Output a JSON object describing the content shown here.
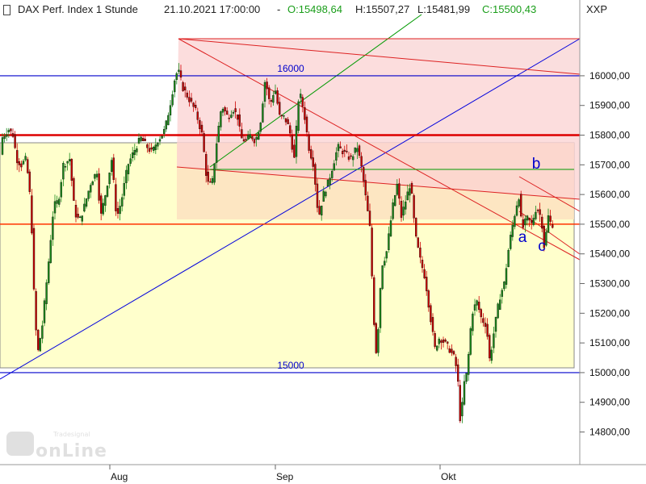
{
  "header": {
    "instrument": "DAX Perf. Index 1 Stunde",
    "datetime": "21.10.2021 17:00:00",
    "separator": "-",
    "open": "O:15498,64",
    "high": "H:15507,27",
    "low": "L:15481,99",
    "close": "C:15500,43",
    "open_color": "#1a9e1a",
    "close_color": "#1a9e1a",
    "currency": "XXP"
  },
  "chart_data": {
    "type": "candlestick",
    "title": "DAX Perf. Index 1 Stunde",
    "y_axis": {
      "side": "right",
      "range": [
        14690,
        16190
      ],
      "ticks": [
        14800,
        14900,
        15000,
        15100,
        15200,
        15300,
        15400,
        15500,
        15600,
        15700,
        15800,
        15900,
        16000
      ],
      "tick_labels": [
        "14800,00",
        "14900,00",
        "15000,00",
        "15100,00",
        "15200,00",
        "15300,00",
        "15400,00",
        "15500,00",
        "15600,00",
        "15700,00",
        "15800,00",
        "15900,00",
        "16000,00"
      ]
    },
    "x_axis": {
      "labels": [
        "Aug",
        "Sep",
        "Okt"
      ]
    },
    "path": [
      [
        0,
        15680
      ],
      [
        4,
        15790
      ],
      [
        12,
        15820
      ],
      [
        18,
        15800
      ],
      [
        22,
        15720
      ],
      [
        28,
        15700
      ],
      [
        34,
        15720
      ],
      [
        40,
        15560
      ],
      [
        44,
        15240
      ],
      [
        48,
        15060
      ],
      [
        54,
        15160
      ],
      [
        62,
        15380
      ],
      [
        68,
        15560
      ],
      [
        74,
        15580
      ],
      [
        80,
        15700
      ],
      [
        88,
        15720
      ],
      [
        94,
        15540
      ],
      [
        100,
        15510
      ],
      [
        106,
        15560
      ],
      [
        114,
        15640
      ],
      [
        122,
        15680
      ],
      [
        126,
        15520
      ],
      [
        132,
        15600
      ],
      [
        140,
        15720
      ],
      [
        146,
        15520
      ],
      [
        152,
        15580
      ],
      [
        160,
        15700
      ],
      [
        170,
        15760
      ],
      [
        176,
        15790
      ],
      [
        184,
        15760
      ],
      [
        190,
        15740
      ],
      [
        196,
        15780
      ],
      [
        202,
        15800
      ],
      [
        206,
        15820
      ],
      [
        212,
        15900
      ],
      [
        218,
        15990
      ],
      [
        222,
        16020
      ],
      [
        228,
        15960
      ],
      [
        236,
        15920
      ],
      [
        244,
        15880
      ],
      [
        252,
        15800
      ],
      [
        258,
        15640
      ],
      [
        264,
        15630
      ],
      [
        270,
        15780
      ],
      [
        276,
        15900
      ],
      [
        284,
        15860
      ],
      [
        290,
        15890
      ],
      [
        296,
        15860
      ],
      [
        300,
        15790
      ],
      [
        306,
        15780
      ],
      [
        312,
        15800
      ],
      [
        318,
        15780
      ],
      [
        324,
        15840
      ],
      [
        330,
        15990
      ],
      [
        336,
        15900
      ],
      [
        342,
        15960
      ],
      [
        348,
        15860
      ],
      [
        354,
        15860
      ],
      [
        360,
        15820
      ],
      [
        366,
        15720
      ],
      [
        372,
        15950
      ],
      [
        378,
        15880
      ],
      [
        384,
        15760
      ],
      [
        390,
        15700
      ],
      [
        396,
        15520
      ],
      [
        402,
        15600
      ],
      [
        408,
        15640
      ],
      [
        414,
        15700
      ],
      [
        420,
        15760
      ],
      [
        428,
        15740
      ],
      [
        436,
        15720
      ],
      [
        444,
        15760
      ],
      [
        450,
        15680
      ],
      [
        456,
        15560
      ],
      [
        460,
        15480
      ],
      [
        464,
        15200
      ],
      [
        468,
        15050
      ],
      [
        474,
        15360
      ],
      [
        480,
        15400
      ],
      [
        488,
        15560
      ],
      [
        494,
        15640
      ],
      [
        498,
        15520
      ],
      [
        504,
        15580
      ],
      [
        510,
        15640
      ],
      [
        516,
        15460
      ],
      [
        522,
        15380
      ],
      [
        528,
        15320
      ],
      [
        534,
        15200
      ],
      [
        540,
        15080
      ],
      [
        546,
        15120
      ],
      [
        552,
        15100
      ],
      [
        558,
        15080
      ],
      [
        564,
        15050
      ],
      [
        568,
        15000
      ],
      [
        572,
        14820
      ],
      [
        576,
        14960
      ],
      [
        580,
        15000
      ],
      [
        586,
        15200
      ],
      [
        592,
        15240
      ],
      [
        598,
        15180
      ],
      [
        604,
        15160
      ],
      [
        608,
        15040
      ],
      [
        614,
        15150
      ],
      [
        620,
        15250
      ],
      [
        626,
        15300
      ],
      [
        632,
        15430
      ],
      [
        638,
        15520
      ],
      [
        644,
        15600
      ],
      [
        648,
        15480
      ],
      [
        654,
        15520
      ],
      [
        660,
        15500
      ],
      [
        666,
        15560
      ],
      [
        672,
        15520
      ],
      [
        676,
        15410
      ],
      [
        680,
        15530
      ],
      [
        684,
        15500
      ]
    ],
    "horizontal_lines": [
      {
        "value": 16000,
        "label": "16000",
        "color": "#0000cc"
      },
      {
        "value": 15000,
        "label": "15000",
        "color": "#0000cc"
      },
      {
        "value": 15800,
        "label": "",
        "color": "#dd0000"
      },
      {
        "value": 15500,
        "label": "",
        "color": "#ff3300"
      }
    ],
    "annotations": [
      {
        "text": "a",
        "color": "#0000cc"
      },
      {
        "text": "b",
        "color": "#0000cc"
      },
      {
        "text": "c",
        "color": "#0000cc"
      }
    ],
    "grid": false,
    "watermark": "Tradesignal online"
  }
}
